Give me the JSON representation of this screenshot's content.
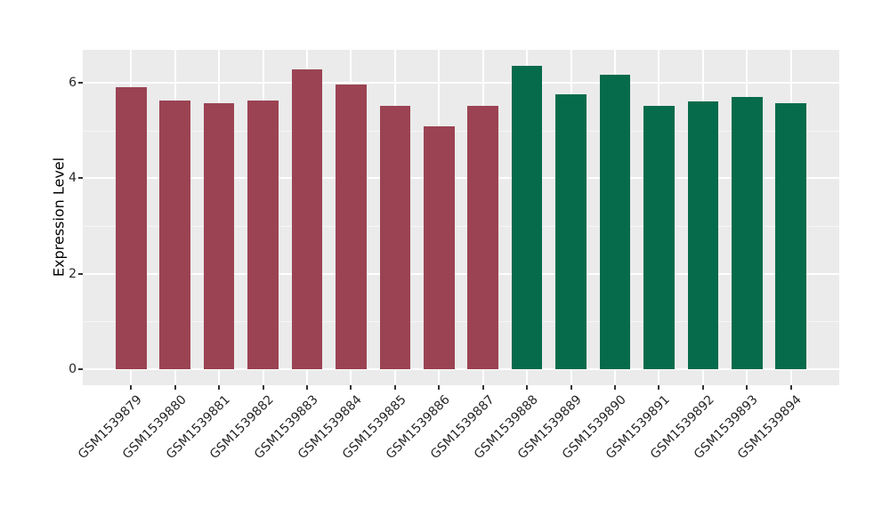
{
  "figure": {
    "background": "#FFFFFF",
    "panel_background": "#EBEBEB",
    "grid_color": "#FFFFFF",
    "tick_mark_color": "#333333",
    "axis_text_color": "#262626",
    "axis_title_color": "#000000"
  },
  "chart_data": {
    "type": "bar",
    "title": "",
    "xlabel": "",
    "ylabel": "Expression Level",
    "categories": [
      "GSM1539879",
      "GSM1539880",
      "GSM1539881",
      "GSM1539882",
      "GSM1539883",
      "GSM1539884",
      "GSM1539885",
      "GSM1539886",
      "GSM1539887",
      "GSM1539888",
      "GSM1539889",
      "GSM1539890",
      "GSM1539891",
      "GSM1539892",
      "GSM1539893",
      "GSM1539894"
    ],
    "values": [
      5.91,
      5.63,
      5.56,
      5.63,
      6.28,
      5.96,
      5.51,
      5.08,
      5.51,
      6.35,
      5.75,
      6.16,
      5.52,
      5.6,
      5.7,
      5.56
    ],
    "bar_colors": [
      "#9B4352",
      "#9B4352",
      "#9B4352",
      "#9B4352",
      "#9B4352",
      "#9B4352",
      "#9B4352",
      "#9B4352",
      "#9B4352",
      "#066B4B",
      "#066B4B",
      "#066B4B",
      "#066B4B",
      "#066B4B",
      "#066B4B",
      "#066B4B"
    ],
    "group_colors": {
      "left_group": "#9B4352",
      "right_group": "#066B4B"
    },
    "ylim": [
      0,
      6.7
    ],
    "yticks": [
      0,
      2,
      4,
      6
    ],
    "yticks_minor": [
      1,
      3,
      5
    ],
    "grid": "on",
    "legend": "none",
    "bar_width_fraction": 0.7,
    "x_label_rotation_deg": 45
  }
}
